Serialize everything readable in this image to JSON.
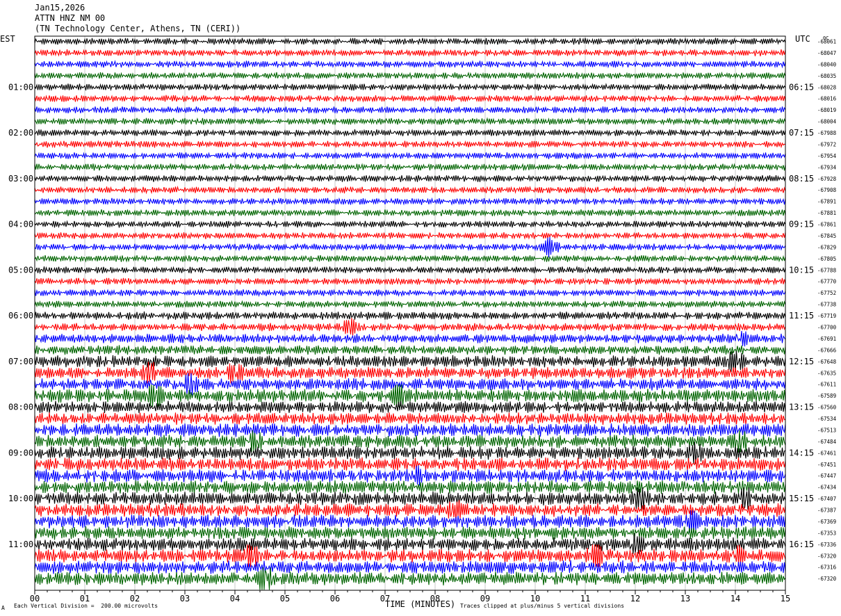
{
  "header": {
    "date": "Jan15,2026",
    "station": "ATTN HNZ NM 00",
    "location": "(TN Technology Center, Athens, TN (CERI))"
  },
  "axes": {
    "left_zone": "EST",
    "right_zone": "UTC",
    "right_top_tag": "0C"
  },
  "footer": {
    "left": "Each Vertical Division =  200.00 microvolts",
    "center": "TIME (MINUTES)",
    "right": "Traces clipped at plus/minus 5 vertical divisions",
    "corner_mark": "A"
  },
  "colors": {
    "cycle": [
      "#000000",
      "#ff0000",
      "#0000ff",
      "#006400"
    ],
    "grid": "#c8c8c8"
  },
  "chart_data": {
    "type": "line",
    "description_type": "helicorder",
    "x": [
      "00",
      "01",
      "02",
      "03",
      "04",
      "05",
      "06",
      "07",
      "08",
      "09",
      "10",
      "11",
      "12",
      "13",
      "14",
      "15"
    ],
    "xlabel": "TIME (MINUTES)",
    "xlim": [
      0,
      15
    ],
    "minutes_per_line": 15,
    "traces": 48,
    "left_hour_labels": [
      "01:00",
      "02:00",
      "03:00",
      "04:00",
      "05:00",
      "06:00",
      "07:00",
      "08:00",
      "09:00",
      "10:00",
      "11:00"
    ],
    "right_hour_labels": [
      "06:15",
      "07:15",
      "08:15",
      "09:15",
      "10:15",
      "11:15",
      "12:15",
      "13:15",
      "14:15",
      "15:15",
      "16:15"
    ],
    "offsets": [
      -68061,
      -68047,
      -68040,
      -68035,
      -68028,
      -68016,
      -68019,
      -68004,
      -67988,
      -67972,
      -67954,
      -67934,
      -67928,
      -67908,
      -67891,
      -67881,
      -67861,
      -67845,
      -67829,
      -67805,
      -67788,
      -67770,
      -67752,
      -67738,
      -67719,
      -67700,
      -67691,
      -67666,
      -67648,
      -67635,
      -67611,
      -67589,
      -67560,
      -67534,
      -67513,
      -67484,
      -67461,
      -67451,
      -67447,
      -67434,
      -67407,
      -67387,
      -67369,
      -67353,
      -67336,
      -67320,
      -67316,
      -67320
    ],
    "amplitude": [
      5,
      5,
      5,
      5,
      5,
      5,
      5,
      5,
      5,
      5,
      5,
      5,
      5,
      5,
      5,
      5,
      5,
      5,
      5,
      5,
      5,
      5,
      5,
      5,
      6,
      6,
      7,
      7,
      9,
      9,
      9,
      10,
      9,
      9,
      10,
      10,
      10,
      10,
      10,
      10,
      10,
      10,
      10,
      10,
      10,
      10,
      10,
      10
    ],
    "events": [
      {
        "trace": 18,
        "minute": 10.3,
        "amp": 14
      },
      {
        "trace": 25,
        "minute": 6.3,
        "amp": 12
      },
      {
        "trace": 26,
        "minute": 14.1,
        "amp": 12
      },
      {
        "trace": 28,
        "minute": 14.0,
        "amp": 16
      },
      {
        "trace": 29,
        "minute": 2.3,
        "amp": 16
      },
      {
        "trace": 29,
        "minute": 4.0,
        "amp": 16
      },
      {
        "trace": 30,
        "minute": 3.1,
        "amp": 18
      },
      {
        "trace": 31,
        "minute": 2.4,
        "amp": 16
      },
      {
        "trace": 31,
        "minute": 7.3,
        "amp": 16
      },
      {
        "trace": 35,
        "minute": 14.1,
        "amp": 18
      },
      {
        "trace": 35,
        "minute": 4.4,
        "amp": 14
      },
      {
        "trace": 36,
        "minute": 13.2,
        "amp": 14
      },
      {
        "trace": 38,
        "minute": 7.6,
        "amp": 14
      },
      {
        "trace": 40,
        "minute": 12.1,
        "amp": 16
      },
      {
        "trace": 40,
        "minute": 14.2,
        "amp": 16
      },
      {
        "trace": 41,
        "minute": 8.4,
        "amp": 16
      },
      {
        "trace": 42,
        "minute": 13.1,
        "amp": 16
      },
      {
        "trace": 44,
        "minute": 12.0,
        "amp": 14
      },
      {
        "trace": 45,
        "minute": 4.3,
        "amp": 20
      },
      {
        "trace": 45,
        "minute": 11.2,
        "amp": 18
      },
      {
        "trace": 45,
        "minute": 14.0,
        "amp": 16
      },
      {
        "trace": 47,
        "minute": 4.6,
        "amp": 20
      }
    ]
  }
}
